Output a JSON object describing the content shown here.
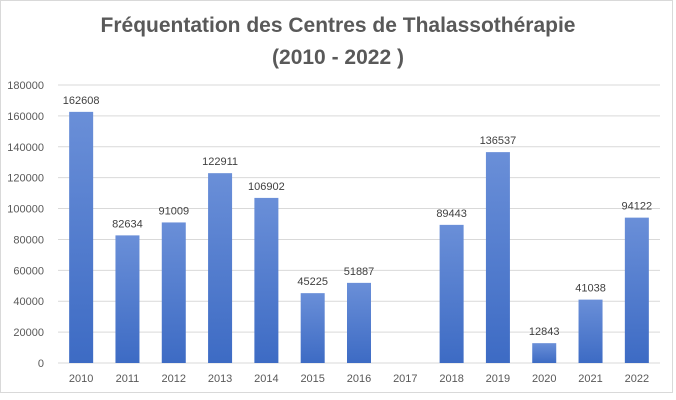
{
  "chart_data": {
    "type": "bar",
    "title_line1": "Fréquentation des Centres de Thalassothérapie",
    "title_line2": "(2010 - 2022 )",
    "xlabel": "",
    "ylabel": "",
    "ylim": [
      0,
      180000
    ],
    "yticks": [
      "0",
      "20000",
      "40000",
      "60000",
      "80000",
      "100000",
      "120000",
      "140000",
      "160000",
      "180000"
    ],
    "categories": [
      "2010",
      "2011",
      "2012",
      "2013",
      "2014",
      "2015",
      "2016",
      "2017",
      "2018",
      "2019",
      "2020",
      "2021",
      "2022"
    ],
    "values": [
      162608,
      82634,
      91009,
      122911,
      106902,
      45225,
      51887,
      null,
      89443,
      136537,
      12843,
      41038,
      94122
    ],
    "data_labels": [
      "162608",
      "82634",
      "91009",
      "122911",
      "106902",
      "45225",
      "51887",
      "",
      "89443",
      "136537",
      "12843",
      "41038",
      "94122"
    ],
    "grid": true,
    "legend": "none",
    "colors": {
      "bar_top": "#6a8fd8",
      "bar_bottom": "#3d6bc4",
      "grid": "#d9d9d9",
      "axis_text": "#595959",
      "label_text": "#404040",
      "title": "#595959"
    }
  }
}
